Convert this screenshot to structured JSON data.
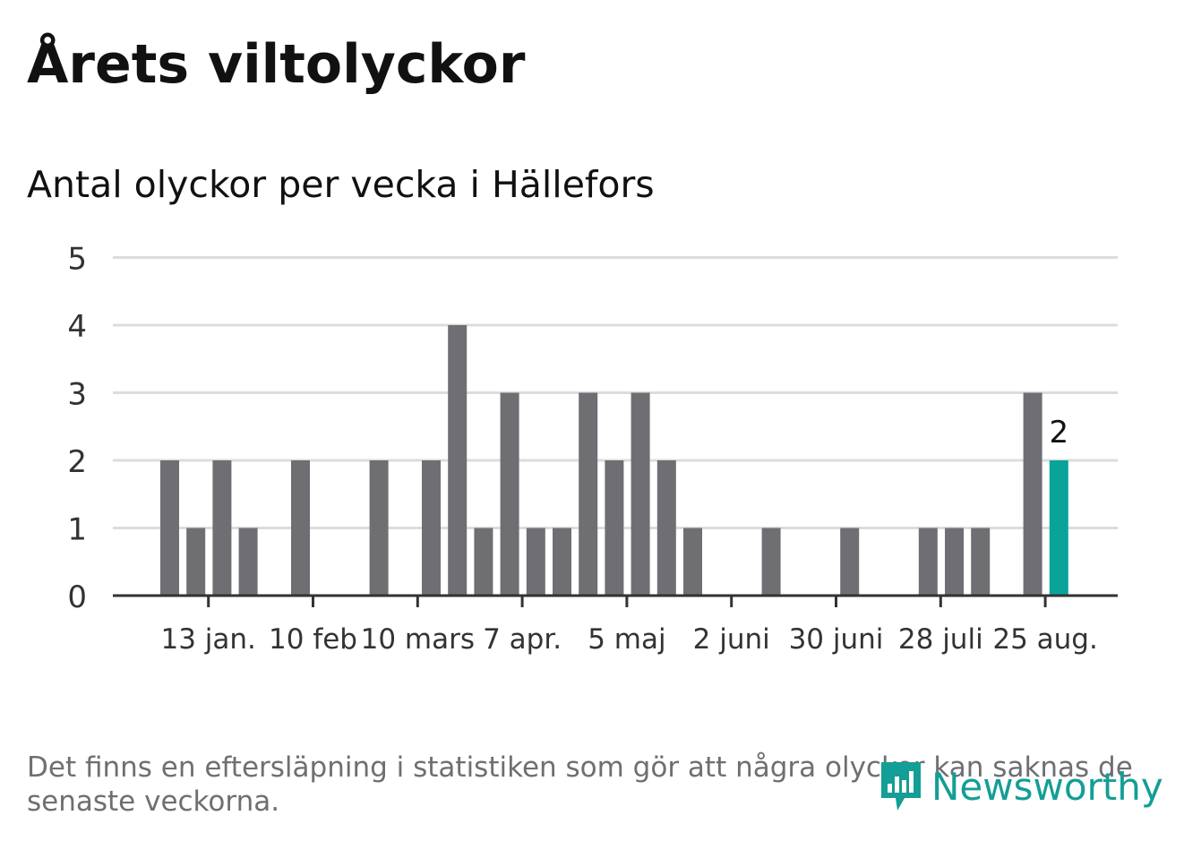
{
  "header": {
    "title": "Årets viltolyckor",
    "subtitle": "Antal olyckor per vecka i Hällefors"
  },
  "footer": {
    "note": "Det finns en eftersläpning i statistiken som gör att några olyckor kan saknas de senaste veckorna.",
    "brand": "Newsworthy",
    "brand_icon": "bar-chart-speech-bubble-icon"
  },
  "colors": {
    "bar": "#6e6e73",
    "highlight": "#0aa39a",
    "grid": "#dcdcdc",
    "axis": "#333333",
    "brand": "#139e96"
  },
  "chart_data": {
    "type": "bar",
    "title": "Antal olyckor per vecka i Hällefors",
    "xlabel": "",
    "ylabel": "",
    "ylim": [
      0,
      5
    ],
    "yticks": [
      0,
      1,
      2,
      3,
      4,
      5
    ],
    "grid": true,
    "x_tick_labels": [
      {
        "label": "13 jan.",
        "week_index": 1
      },
      {
        "label": "10 feb",
        "week_index": 5
      },
      {
        "label": "10 mars",
        "week_index": 9
      },
      {
        "label": "7 apr.",
        "week_index": 13
      },
      {
        "label": "5 maj",
        "week_index": 17
      },
      {
        "label": "2 juni",
        "week_index": 21
      },
      {
        "label": "30 juni",
        "week_index": 25
      },
      {
        "label": "28 juli",
        "week_index": 29
      },
      {
        "label": "25 aug.",
        "week_index": 33
      }
    ],
    "values": [
      2,
      1,
      2,
      1,
      0,
      2,
      0,
      0,
      2,
      0,
      2,
      4,
      1,
      3,
      1,
      1,
      3,
      2,
      3,
      2,
      1,
      0,
      0,
      1,
      0,
      0,
      1,
      0,
      0,
      1,
      1,
      1,
      0,
      3,
      2
    ],
    "highlight_index": 34,
    "highlight_label": "2"
  }
}
